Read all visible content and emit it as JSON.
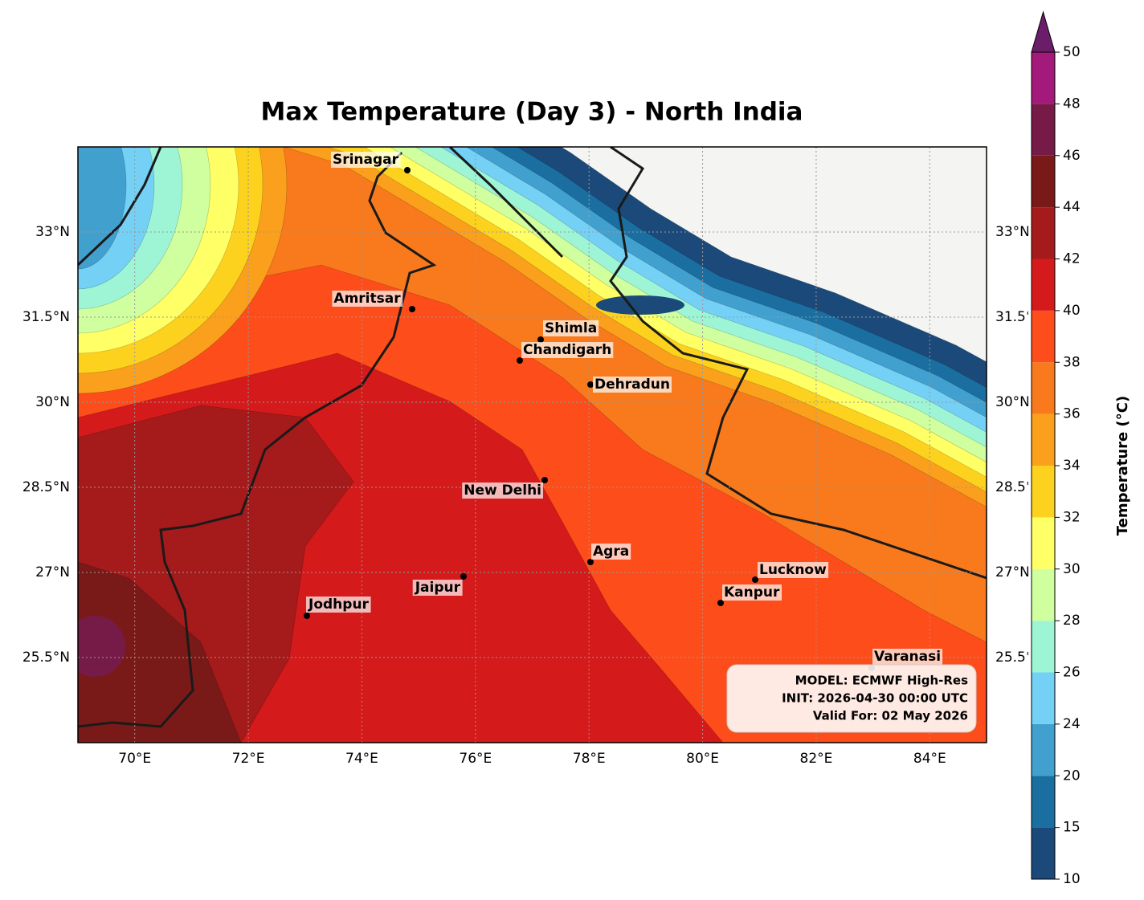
{
  "title": "Max Temperature (Day 3) - North India",
  "map": {
    "xlim": [
      69,
      85
    ],
    "ylim": [
      24,
      34.5
    ],
    "lon_ticks": [
      {
        "value": 70,
        "label": "70°E"
      },
      {
        "value": 72,
        "label": "72°E"
      },
      {
        "value": 74,
        "label": "74°E"
      },
      {
        "value": 76,
        "label": "76°E"
      },
      {
        "value": 78,
        "label": "78°E"
      },
      {
        "value": 80,
        "label": "80°E"
      },
      {
        "value": 82,
        "label": "82°E"
      },
      {
        "value": 84,
        "label": "84°E"
      }
    ],
    "lat_ticks": [
      {
        "value": 25.5,
        "label": "25.5°N"
      },
      {
        "value": 27,
        "label": "27°N"
      },
      {
        "value": 28.5,
        "label": "28.5°N"
      },
      {
        "value": 30,
        "label": "30°N"
      },
      {
        "value": 31.5,
        "label": "31.5°N"
      },
      {
        "value": 33,
        "label": "33°N"
      }
    ]
  },
  "cities": [
    "Srinagar",
    "Amritsar",
    "Shimla",
    "Chandigarh",
    "Dehradun",
    "New Delhi",
    "Agra",
    "Jaipur",
    "Jodhpur",
    "Kanpur",
    "Lucknow",
    "Varanasi"
  ],
  "info": [
    "MODEL: ECMWF High-Res",
    "INIT: 2026-04-30 00:00 UTC",
    "Valid For: 02 May 2026"
  ],
  "colorbar": {
    "label": "Temperature (°C)",
    "ticks": [
      10,
      15,
      20,
      24,
      26,
      28,
      30,
      32,
      34,
      36,
      38,
      40,
      42,
      44,
      46,
      48,
      50
    ],
    "colors": [
      "#1b4a7a",
      "#1a6fa0",
      "#42a0cf",
      "#74d0f5",
      "#9ef5d6",
      "#cfff9e",
      "#ffff66",
      "#fdd21e",
      "#fba01c",
      "#f97a1c",
      "#fd4d1a",
      "#d41a1a",
      "#a51a1a",
      "#7a1a18",
      "#761a48",
      "#a31a7a"
    ],
    "extend_color": "#6a1e6a"
  }
}
